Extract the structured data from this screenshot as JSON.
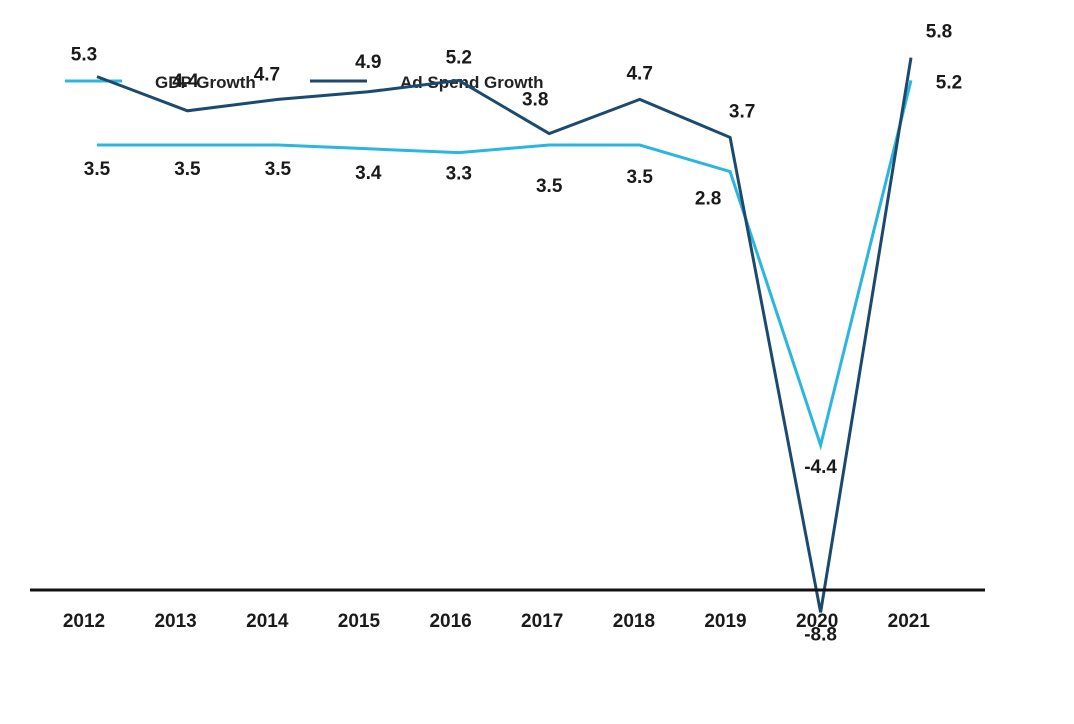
{
  "chart_data": {
    "type": "line",
    "title": "",
    "xlabel": "",
    "ylabel": "",
    "categories": [
      "2012",
      "2013",
      "2014",
      "2015",
      "2016",
      "2017",
      "2018",
      "2019",
      "2020",
      "2021"
    ],
    "series": [
      {
        "name": "GDP Growth",
        "color": "#2bb6df",
        "values": [
          3.5,
          3.5,
          3.5,
          3.4,
          3.3,
          3.5,
          3.5,
          2.8,
          -4.4,
          5.2
        ],
        "labels": [
          "3.5",
          "3.5",
          "3.5",
          "3.4",
          "3.3",
          "3.5",
          "3.5",
          "2.8",
          "-4.4",
          "5.2"
        ]
      },
      {
        "name": "Ad Spend Growth",
        "color": "#1c4a6e",
        "values": [
          5.3,
          4.4,
          4.7,
          4.9,
          5.2,
          3.8,
          4.7,
          3.7,
          -8.8,
          5.8
        ],
        "labels": [
          "5.3",
          "4.4",
          "4.7",
          "4.9",
          "5.2",
          "3.8",
          "4.7",
          "3.7",
          "-8.8",
          "5.8"
        ]
      }
    ],
    "ylim": [
      -9.5,
      7
    ],
    "grid": false,
    "legend": "top-left"
  }
}
